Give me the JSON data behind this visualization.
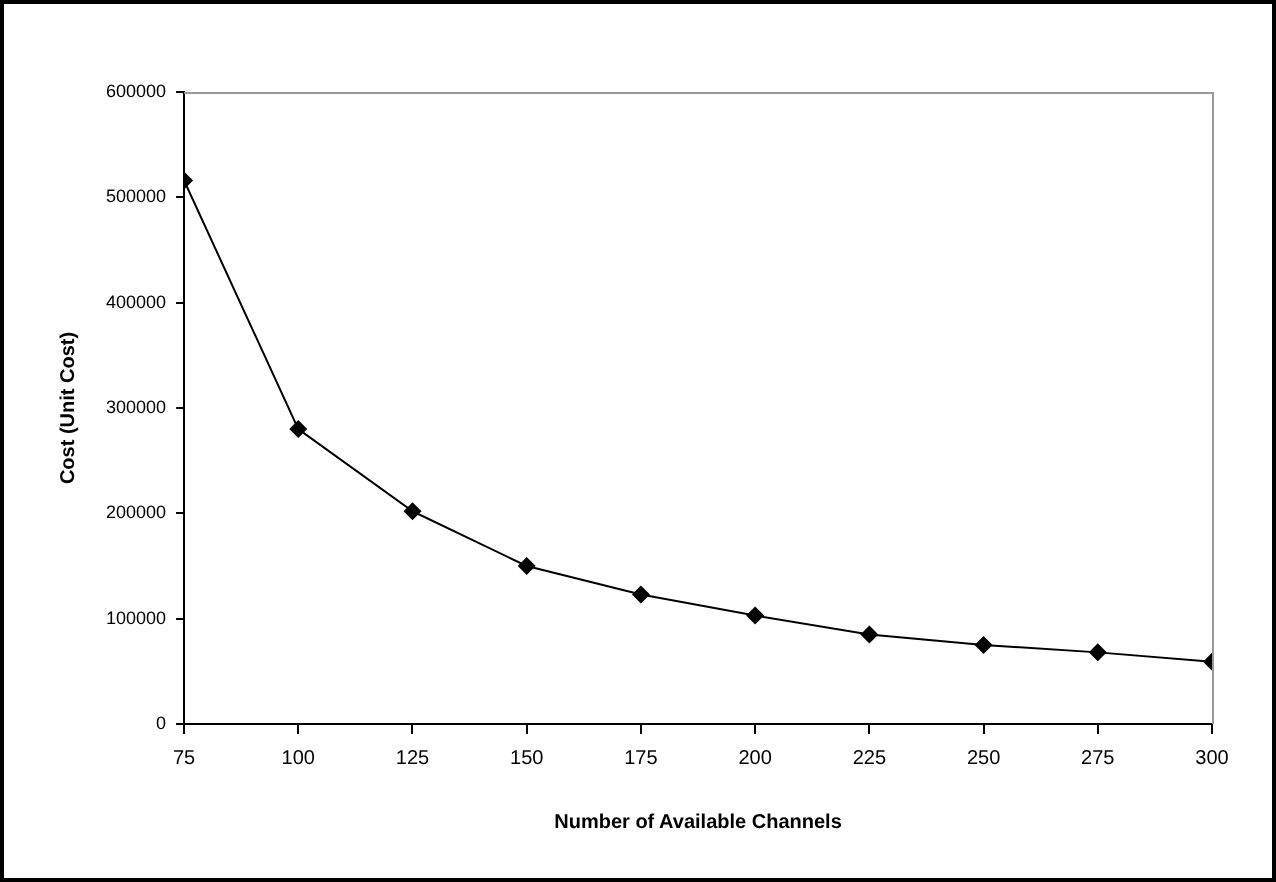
{
  "chart_data": {
    "type": "line",
    "xlabel": "Number of Available Channels",
    "ylabel": "Cost (Unit Cost)",
    "x": [
      75,
      100,
      125,
      150,
      175,
      200,
      225,
      250,
      275,
      300
    ],
    "series": [
      {
        "color": "#000000",
        "values": [
          516000,
          280000,
          202000,
          150000,
          123000,
          103000,
          85000,
          75000,
          68000,
          59000
        ]
      }
    ],
    "xlim": [
      75,
      300
    ],
    "xticks": [
      75,
      100,
      125,
      150,
      175,
      200,
      225,
      250,
      275,
      300
    ],
    "ylim": [
      0,
      600000
    ],
    "yticks": [
      0,
      100000,
      200000,
      300000,
      400000,
      500000,
      600000
    ],
    "grid": false,
    "legend": false,
    "marker": "diamond",
    "line_style": "solid"
  }
}
